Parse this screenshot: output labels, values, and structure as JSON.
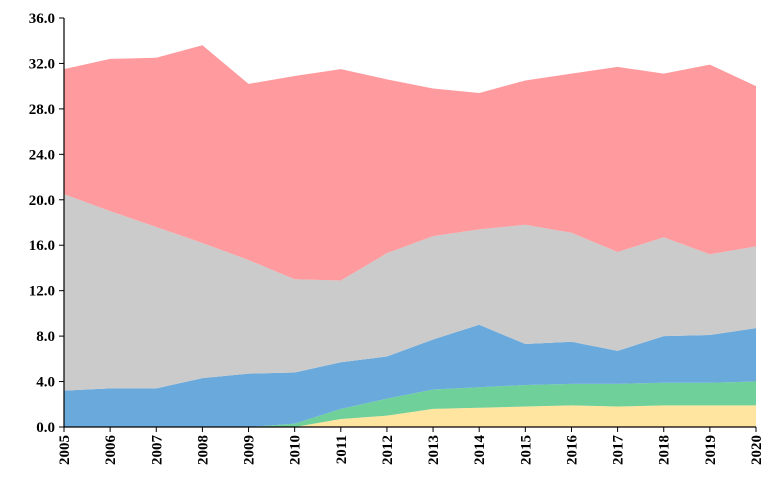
{
  "chart_data": {
    "type": "area",
    "stacked": true,
    "title": "",
    "xlabel": "",
    "ylabel": "",
    "categories": [
      "2005",
      "2006",
      "2007",
      "2008",
      "2009",
      "2010",
      "2011",
      "2012",
      "2013",
      "2014",
      "2015",
      "2016",
      "2017",
      "2018",
      "2019",
      "2020"
    ],
    "ylim": [
      0,
      36
    ],
    "yticks": [
      "0.0",
      "4.0",
      "8.0",
      "12.0",
      "16.0",
      "20.0",
      "24.0",
      "28.0",
      "32.0",
      "36.0"
    ],
    "grid": false,
    "legend": "none",
    "series": [
      {
        "color": "#ffe5a0",
        "values": [
          0,
          0,
          0,
          0,
          0,
          0,
          0.7,
          1.0,
          1.6,
          1.7,
          1.8,
          1.9,
          1.8,
          1.9,
          1.9,
          1.9
        ]
      },
      {
        "color": "#6fd09a",
        "values": [
          0,
          0,
          0,
          0,
          0,
          0.3,
          0.9,
          1.5,
          1.7,
          1.8,
          1.9,
          1.9,
          2.0,
          2.0,
          2.0,
          2.1
        ]
      },
      {
        "color": "#6aa9dc",
        "values": [
          3.2,
          3.4,
          3.4,
          4.3,
          4.7,
          4.5,
          4.1,
          3.7,
          4.4,
          5.5,
          3.6,
          3.7,
          2.9,
          4.1,
          4.2,
          4.7
        ]
      },
      {
        "color": "#cbcbcb",
        "values": [
          17.3,
          15.6,
          14.2,
          11.9,
          10.0,
          8.2,
          7.2,
          9.1,
          9.1,
          8.4,
          10.5,
          9.6,
          8.7,
          8.7,
          7.1,
          7.2
        ]
      },
      {
        "color": "#ff9a9e",
        "values": [
          11.0,
          13.4,
          14.9,
          17.4,
          15.5,
          17.9,
          18.6,
          15.3,
          13.0,
          12.0,
          12.7,
          14.0,
          16.3,
          14.4,
          16.7,
          14.1
        ]
      }
    ]
  }
}
